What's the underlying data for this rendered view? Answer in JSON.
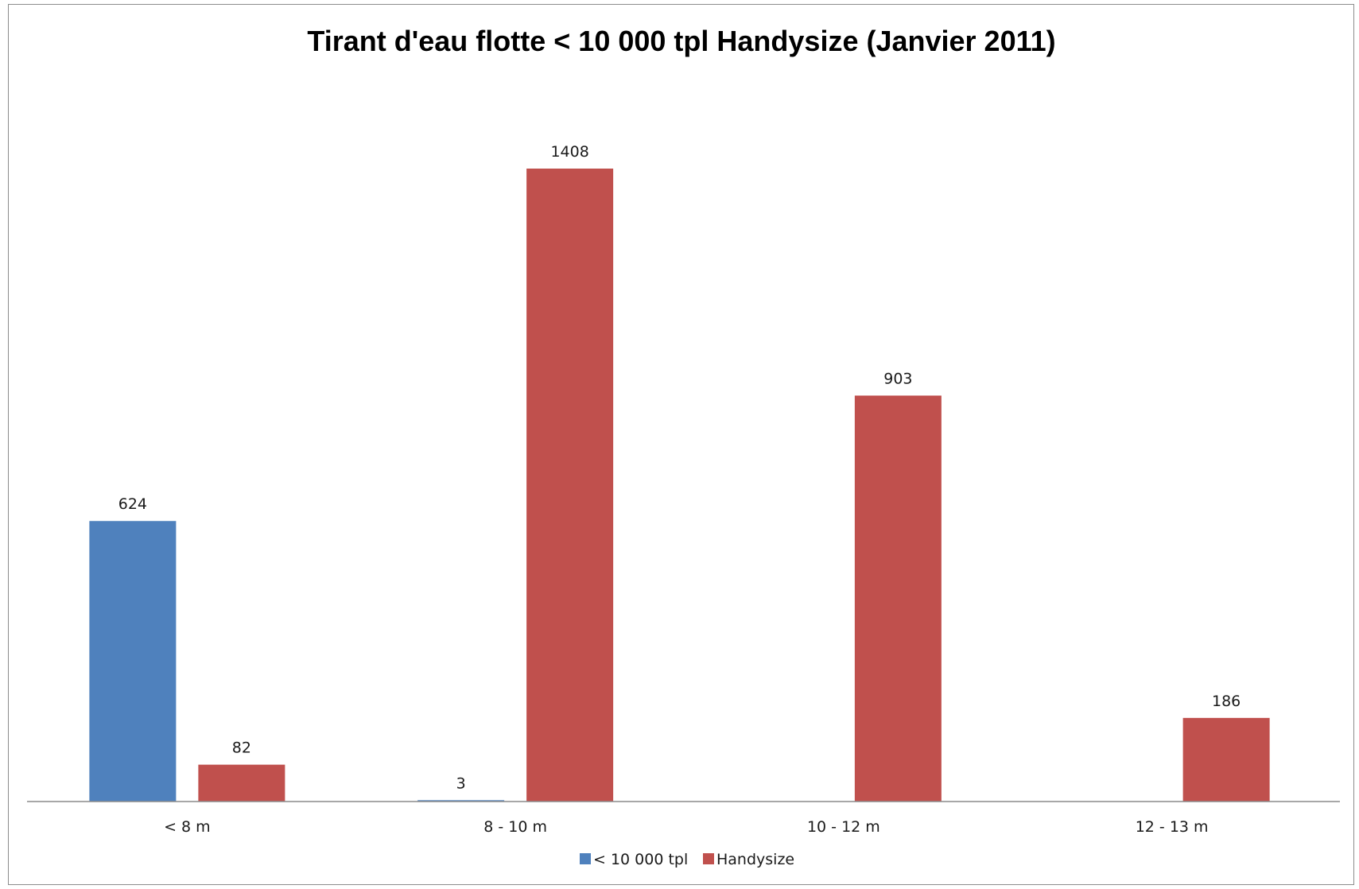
{
  "chart_data": {
    "type": "bar",
    "title": "Tirant d'eau flotte < 10 000 tpl Handysize (Janvier 2011)",
    "categories": [
      "< 8 m",
      "8 - 10 m",
      "10 - 12 m",
      "12 - 13 m"
    ],
    "series": [
      {
        "name": "< 10 000 tpl",
        "color": "#4F81BD",
        "values": [
          624,
          3,
          null,
          null
        ]
      },
      {
        "name": "Handysize",
        "color": "#C0504D",
        "values": [
          82,
          1408,
          903,
          186
        ]
      }
    ],
    "ylim": [
      0,
      1600
    ],
    "grid": false,
    "legend": "bottom"
  }
}
